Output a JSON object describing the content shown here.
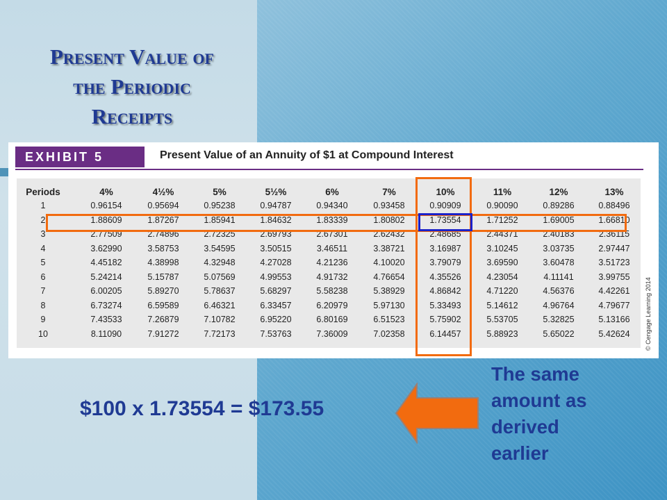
{
  "slide": {
    "title_lines": [
      "Present Value of",
      "the Periodic",
      "Receipts"
    ],
    "equation": "$100 x 1.73554 = $173.55",
    "note_lines": [
      "The same",
      "amount as",
      "derived",
      "earlier"
    ],
    "colors": {
      "title": "#1f3a93",
      "highlight_orange": "#f26b0f",
      "highlight_blue": "#1b21c9",
      "exhibit_purple": "#6a2d84"
    }
  },
  "exhibit": {
    "label": "EXHIBIT 5",
    "title": "Present Value of an Annuity of $1 at Compound Interest",
    "copyright": "© Cengage Learning 2014",
    "headers": [
      "Periods",
      "4%",
      "4½%",
      "5%",
      "5½%",
      "6%",
      "7%",
      "10%",
      "11%",
      "12%",
      "13%"
    ],
    "rows": [
      [
        "1",
        "0.96154",
        "0.95694",
        "0.95238",
        "0.94787",
        "0.94340",
        "0.93458",
        "0.90909",
        "0.90090",
        "0.89286",
        "0.88496"
      ],
      [
        "2",
        "1.88609",
        "1.87267",
        "1.85941",
        "1.84632",
        "1.83339",
        "1.80802",
        "1.73554",
        "1.71252",
        "1.69005",
        "1.66810"
      ],
      [
        "3",
        "2.77509",
        "2.74896",
        "2.72325",
        "2.69793",
        "2.67301",
        "2.62432",
        "2.48685",
        "2.44371",
        "2.40183",
        "2.36115"
      ],
      [
        "4",
        "3.62990",
        "3.58753",
        "3.54595",
        "3.50515",
        "3.46511",
        "3.38721",
        "3.16987",
        "3.10245",
        "3.03735",
        "2.97447"
      ],
      [
        "5",
        "4.45182",
        "4.38998",
        "4.32948",
        "4.27028",
        "4.21236",
        "4.10020",
        "3.79079",
        "3.69590",
        "3.60478",
        "3.51723"
      ],
      [
        "6",
        "5.24214",
        "5.15787",
        "5.07569",
        "4.99553",
        "4.91732",
        "4.76654",
        "4.35526",
        "4.23054",
        "4.11141",
        "3.99755"
      ],
      [
        "7",
        "6.00205",
        "5.89270",
        "5.78637",
        "5.68297",
        "5.58238",
        "5.38929",
        "4.86842",
        "4.71220",
        "4.56376",
        "4.42261"
      ],
      [
        "8",
        "6.73274",
        "6.59589",
        "6.46321",
        "6.33457",
        "6.20979",
        "5.97130",
        "5.33493",
        "5.14612",
        "4.96764",
        "4.79677"
      ],
      [
        "9",
        "7.43533",
        "7.26879",
        "7.10782",
        "6.95220",
        "6.80169",
        "6.51523",
        "5.75902",
        "5.53705",
        "5.32825",
        "5.13166"
      ],
      [
        "10",
        "8.11090",
        "7.91272",
        "7.72173",
        "7.53763",
        "7.36009",
        "7.02358",
        "6.14457",
        "5.88923",
        "5.65022",
        "5.42624"
      ]
    ]
  }
}
